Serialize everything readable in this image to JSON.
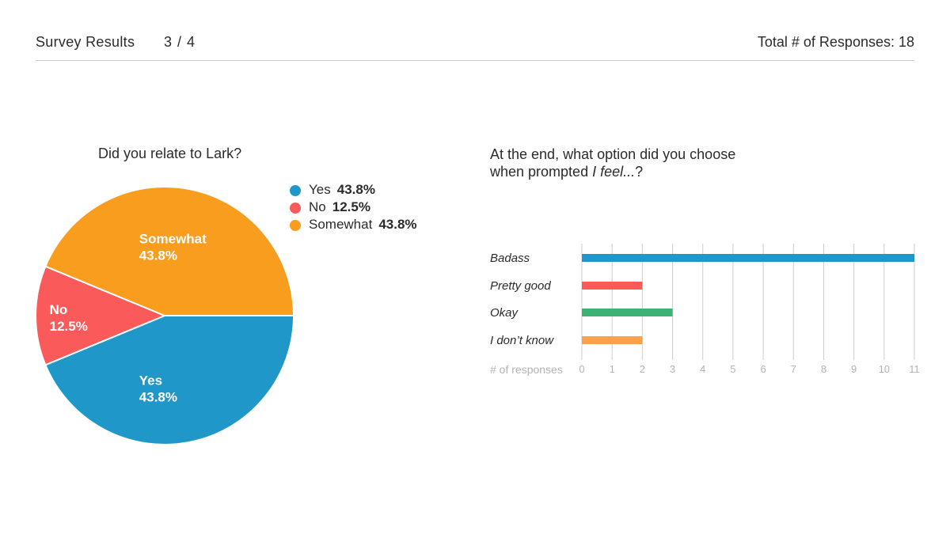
{
  "header": {
    "title": "Survey Results",
    "pager": "3 / 4",
    "total": "Total # of Responses: 18"
  },
  "colors": {
    "yes": "#1f98c9",
    "no": "#fb5a5a",
    "somewhat": "#f99d1f",
    "okay": "#3db275",
    "dont_know": "#f9a14c",
    "grid": "#cccccc",
    "tick": "#b3b3b3"
  },
  "chart_data": [
    {
      "type": "pie",
      "title": "Did you relate to Lark?",
      "slices": [
        {
          "name": "Yes",
          "value": 43.8,
          "label": "43.8%",
          "color": "#1f98c9"
        },
        {
          "name": "No",
          "value": 12.5,
          "label": "12.5%",
          "color": "#fb5a5a"
        },
        {
          "name": "Somewhat",
          "value": 43.8,
          "label": "43.8%",
          "color": "#f99d1f"
        }
      ],
      "legend_position": "right"
    },
    {
      "type": "bar",
      "orientation": "horizontal",
      "title_line1": "At the end, what option did you choose",
      "title_line2": "when prompted ",
      "title_line2_italic": "I feel...",
      "title_line2_end": "?",
      "categories": [
        "Badass",
        "Pretty good",
        "Okay",
        "I don’t know"
      ],
      "values": [
        11,
        2,
        3,
        2
      ],
      "colors": [
        "#1f98c9",
        "#fb5a5a",
        "#3db275",
        "#f9a14c"
      ],
      "xlabel": "# of responses",
      "xlim": [
        0,
        11
      ],
      "xticks": [
        "0",
        "1",
        "2",
        "3",
        "4",
        "5",
        "6",
        "7",
        "8",
        "9",
        "10",
        "11"
      ],
      "grid": true
    }
  ]
}
